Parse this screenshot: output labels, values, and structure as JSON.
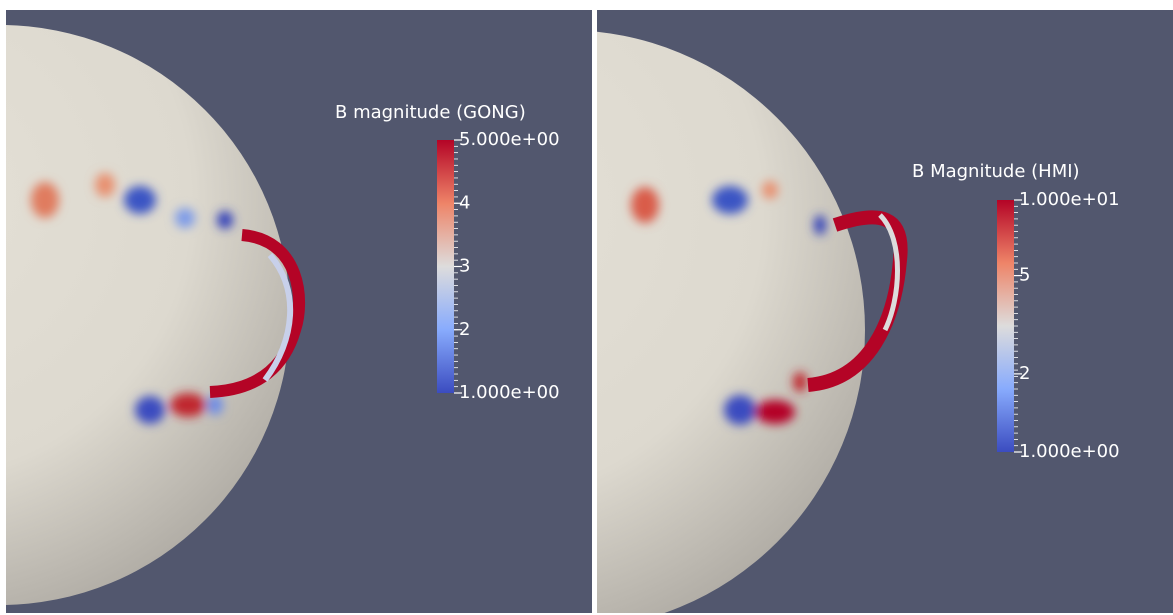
{
  "panels": [
    {
      "colorbar": {
        "title": "B magnitude (GONG)",
        "labels": [
          "5.000e+00",
          "4",
          "3",
          "2",
          "1.000e+00"
        ]
      }
    },
    {
      "colorbar": {
        "title": "B Magnitude (HMI)",
        "labels": [
          "1.000e+01",
          "5",
          "2",
          "1.000e+00"
        ]
      }
    }
  ]
}
